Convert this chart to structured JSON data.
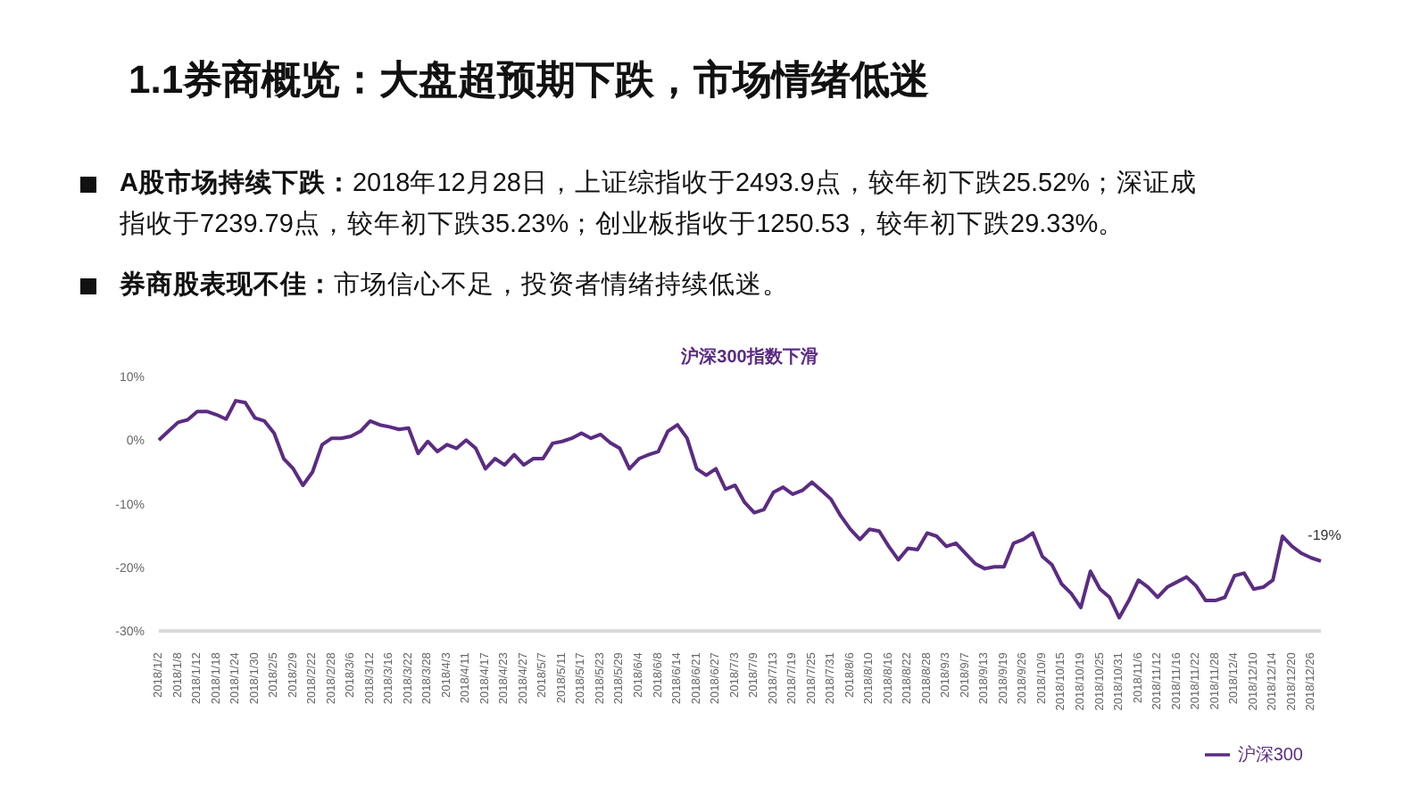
{
  "chart_data": {
    "type": "line",
    "title": "1.1券商概览：大盘超预期下跌，市场情绪低迷",
    "subtitle": "沪深300指数下滑",
    "annotations": [
      "A股市场持续下跌：2018年12月28日，上证综指收于2493.9点，较年初下跌25.52%；深证成指收于7239.79点，较年初下跌35.23%；创业板指收于1250.53，较年初下跌29.33%。",
      "券商股表现不佳：市场信心不足，投资者情绪持续低迷。"
    ],
    "categories": [
      "2018/1/2",
      null,
      "2018/1/8",
      null,
      "2018/1/12",
      null,
      "2018/1/18",
      null,
      "2018/1/24",
      null,
      "2018/1/30",
      null,
      "2018/2/5",
      null,
      "2018/2/9",
      null,
      "2018/2/22",
      null,
      "2018/2/28",
      null,
      "2018/3/6",
      null,
      "2018/3/12",
      null,
      "2018/3/16",
      null,
      "2018/3/22",
      null,
      "2018/3/28",
      null,
      "2018/4/3",
      null,
      "2018/4/11",
      null,
      "2018/4/17",
      null,
      "2018/4/23",
      null,
      "2018/4/27",
      null,
      "2018/5/7",
      null,
      "2018/5/11",
      null,
      "2018/5/17",
      null,
      "2018/5/23",
      null,
      "2018/5/29",
      null,
      "2018/6/4",
      null,
      "2018/6/8",
      null,
      "2018/6/14",
      null,
      "2018/6/21",
      null,
      "2018/6/27",
      null,
      "2018/7/3",
      null,
      "2018/7/9",
      null,
      "2018/7/13",
      null,
      "2018/7/19",
      null,
      "2018/7/25",
      null,
      "2018/7/31",
      null,
      "2018/8/6",
      null,
      "2018/8/10",
      null,
      "2018/8/16",
      null,
      "2018/8/22",
      null,
      "2018/8/28",
      null,
      "2018/9/3",
      null,
      "2018/9/7",
      null,
      "2018/9/13",
      null,
      "2018/9/19",
      null,
      "2018/9/26",
      null,
      "2018/10/9",
      null,
      "2018/10/15",
      null,
      "2018/10/19",
      null,
      "2018/10/25",
      null,
      "2018/10/31",
      null,
      "2018/11/6",
      null,
      "2018/11/12",
      null,
      "2018/11/16",
      null,
      "2018/11/22",
      null,
      "2018/11/28",
      null,
      "2018/12/4",
      null,
      "2018/12/10",
      null,
      "2018/12/14",
      null,
      "2018/12/20",
      null,
      "2018/12/26",
      null
    ],
    "series": [
      {
        "name": "沪深300",
        "color": "#5b2c83",
        "values": [
          0,
          1.4,
          2.8,
          3.2,
          4.5,
          4.5,
          4.0,
          3.3,
          6.2,
          5.9,
          3.5,
          3.0,
          1.1,
          -2.9,
          -4.5,
          -7.1,
          -5.0,
          -0.7,
          0.3,
          0.3,
          0.6,
          1.4,
          3.0,
          2.4,
          2.1,
          1.7,
          1.9,
          -2.1,
          -0.2,
          -1.8,
          -0.7,
          -1.3,
          0,
          -1.3,
          -4.5,
          -2.9,
          -3.9,
          -2.3,
          -3.9,
          -2.9,
          -2.9,
          -0.5,
          -0.2,
          0.3,
          1.1,
          0.3,
          0.9,
          -0.4,
          -1.3,
          -4.5,
          -2.9,
          -2.3,
          -1.8,
          1.4,
          2.4,
          0.3,
          -4.5,
          -5.5,
          -4.5,
          -7.7,
          -7.1,
          -9.8,
          -11.4,
          -10.9,
          -8.2,
          -7.4,
          -8.5,
          -7.9,
          -6.6,
          -7.9,
          -9.3,
          -11.9,
          -14.0,
          -15.6,
          -14.0,
          -14.3,
          -16.7,
          -18.8,
          -17.0,
          -17.2,
          -14.6,
          -15.1,
          -16.7,
          -16.2,
          -17.8,
          -19.4,
          -20.2,
          -19.9,
          -19.9,
          -16.2,
          -15.6,
          -14.6,
          -18.3,
          -19.6,
          -22.6,
          -24.1,
          -26.3,
          -20.6,
          -23.4,
          -24.7,
          -27.9,
          -25.2,
          -22.0,
          -23.1,
          -24.7,
          -23.1,
          -22.3,
          -21.5,
          -22.9,
          -25.2,
          -25.2,
          -24.7,
          -21.3,
          -20.9,
          -23.4,
          -23.1,
          -22.0,
          -15.1,
          -16.7,
          -17.8,
          -18.5,
          -19
        ],
        "value_labels": [
          null,
          null,
          null,
          null,
          null,
          null,
          null,
          null,
          null,
          null,
          null,
          null,
          null,
          null,
          null,
          null,
          null,
          null,
          null,
          null,
          null,
          null,
          null,
          null,
          null,
          null,
          null,
          null,
          null,
          null,
          null,
          null,
          null,
          null,
          null,
          null,
          null,
          null,
          null,
          null,
          null,
          null,
          null,
          null,
          null,
          null,
          null,
          null,
          null,
          null,
          null,
          null,
          null,
          null,
          null,
          null,
          null,
          null,
          null,
          null,
          null,
          null,
          null,
          null,
          null,
          null,
          null,
          null,
          null,
          null,
          null,
          null,
          null,
          null,
          null,
          null,
          null,
          null,
          null,
          null,
          null,
          null,
          null,
          null,
          null,
          null,
          null,
          null,
          null,
          null,
          null,
          null,
          null,
          null,
          null,
          null,
          null,
          null,
          null,
          null,
          null,
          null,
          null,
          null,
          null,
          null,
          null,
          null,
          null,
          null,
          null,
          null,
          null,
          null,
          null,
          null,
          null,
          null,
          null,
          null,
          null,
          "-19%"
        ]
      }
    ],
    "ylim": [
      -30,
      10
    ],
    "yticks": [
      {
        "value": -30,
        "label": "-30%"
      },
      {
        "value": -20,
        "label": "-20%"
      },
      {
        "value": -10,
        "label": "-10%"
      },
      {
        "value": 0,
        "label": "0%"
      },
      {
        "value": 10,
        "label": "10%"
      }
    ],
    "grid": false,
    "legend": "bottom right",
    "marker": "none",
    "line_style": "solid"
  }
}
